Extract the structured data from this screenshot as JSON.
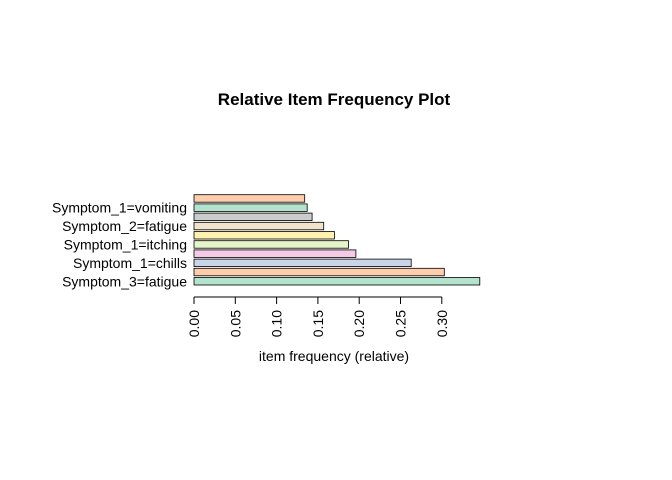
{
  "chart_data": {
    "type": "bar",
    "orientation": "horizontal",
    "title": "Relative Item Frequency Plot",
    "xlabel": "item frequency (relative)",
    "ylabel": "",
    "xlim": [
      0,
      0.35
    ],
    "xticks": [
      "0.00",
      "0.05",
      "0.10",
      "0.15",
      "0.20",
      "0.25",
      "0.30"
    ],
    "xtick_values": [
      0,
      0.05,
      0.1,
      0.15,
      0.2,
      0.25,
      0.3
    ],
    "categories": [
      "Symptom_3=fatigue",
      "",
      "Symptom_1=chills",
      "",
      "Symptom_1=itching",
      "",
      "Symptom_2=fatigue",
      "",
      "Symptom_1=vomiting",
      ""
    ],
    "values": [
      0.346,
      0.303,
      0.263,
      0.196,
      0.187,
      0.17,
      0.157,
      0.143,
      0.137,
      0.134
    ],
    "colors": [
      "#B3E2CD",
      "#FDCDAC",
      "#CBD5E8",
      "#F4CAE4",
      "#E6F5C9",
      "#FFF2AE",
      "#F1E2CC",
      "#CCCCCC",
      "#B3E2CD",
      "#FDCDAC"
    ],
    "grid": false,
    "legend": "none"
  }
}
